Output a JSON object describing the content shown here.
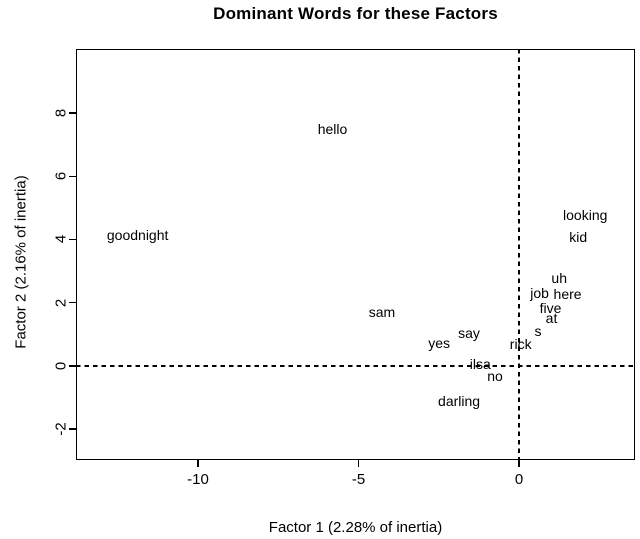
{
  "title": "Dominant Words for these Factors",
  "colors": {
    "foreground": "#000000",
    "background": "#ffffff"
  },
  "chart_data": {
    "type": "scatter",
    "title": "Dominant Words for these Factors",
    "xlabel": "Factor 1 (2.28% of inertia)",
    "ylabel": "Factor 2 (2.16% of inertia)",
    "xlim": [
      -13.8,
      3.61
    ],
    "ylim": [
      -2.98,
      10.03
    ],
    "x_ticks": [
      -10,
      -5,
      0
    ],
    "y_ticks": [
      -2,
      0,
      2,
      4,
      6,
      8
    ],
    "grid": false,
    "legend": "none",
    "reference_lines": [
      {
        "axis": "x",
        "value": 0,
        "style": "dashed"
      },
      {
        "axis": "y",
        "value": 0,
        "style": "dashed"
      }
    ],
    "points": [
      {
        "label": "goodnight",
        "x": -11.88,
        "y": 4.13
      },
      {
        "label": "hello",
        "x": -5.81,
        "y": 7.5
      },
      {
        "label": "sam",
        "x": -4.27,
        "y": 1.69
      },
      {
        "label": "yes",
        "x": -2.49,
        "y": 0.71
      },
      {
        "label": "say",
        "x": -1.56,
        "y": 1.03
      },
      {
        "label": "ilsa",
        "x": -1.21,
        "y": 0.06
      },
      {
        "label": "no",
        "x": -0.75,
        "y": -0.32
      },
      {
        "label": "darling",
        "x": -1.87,
        "y": -1.12
      },
      {
        "label": "rick",
        "x": 0.05,
        "y": 0.7
      },
      {
        "label": "s",
        "x": 0.59,
        "y": 1.09
      },
      {
        "label": "at",
        "x": 1.01,
        "y": 1.5
      },
      {
        "label": "five",
        "x": 0.98,
        "y": 1.84
      },
      {
        "label": "job",
        "x": 0.64,
        "y": 2.31
      },
      {
        "label": "here",
        "x": 1.51,
        "y": 2.29
      },
      {
        "label": "uh",
        "x": 1.25,
        "y": 2.77
      },
      {
        "label": "kid",
        "x": 1.84,
        "y": 4.08
      },
      {
        "label": "looking",
        "x": 2.06,
        "y": 4.76
      }
    ]
  }
}
